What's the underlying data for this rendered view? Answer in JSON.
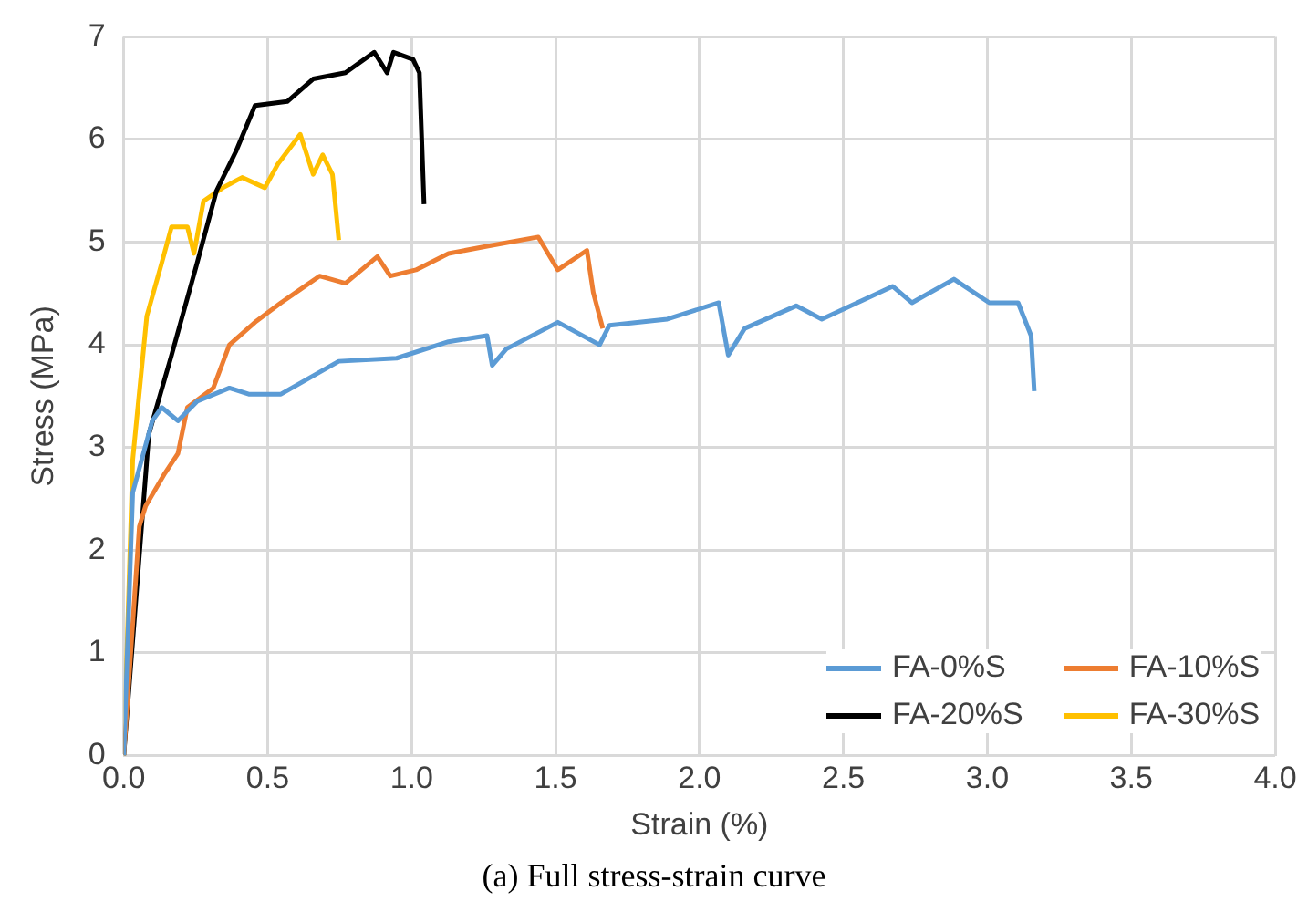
{
  "chart_data": {
    "type": "line",
    "xlabel": "Strain (%)",
    "ylabel": "Stress (MPa)",
    "annotations": [
      "(a) Full stress-strain curve"
    ],
    "xlim": [
      0,
      4
    ],
    "xticks": [
      {
        "value": 0,
        "label": "0.0"
      },
      {
        "value": 0.5,
        "label": "0.5"
      },
      {
        "value": 1,
        "label": "1.0"
      },
      {
        "value": 1.5,
        "label": "1.5"
      },
      {
        "value": 2,
        "label": "2.0"
      },
      {
        "value": 2.5,
        "label": "2.5"
      },
      {
        "value": 3,
        "label": "3.0"
      },
      {
        "value": 3.5,
        "label": "3.5"
      },
      {
        "value": 4,
        "label": "4.0"
      }
    ],
    "ylim": [
      0,
      7
    ],
    "yticks": [
      0,
      1,
      2,
      3,
      4,
      5,
      6,
      7
    ],
    "grid": true,
    "legend": "bottom right",
    "marker": "none",
    "line_style": "solid",
    "series": [
      {
        "name": "FA-0%S",
        "color": "#5b9bd5",
        "x": [
          0,
          0.031,
          0.099,
          0.132,
          0.188,
          0.255,
          0.367,
          0.434,
          0.546,
          0.747,
          0.948,
          1.128,
          1.262,
          1.28,
          1.329,
          1.508,
          1.653,
          1.687,
          1.888,
          2.067,
          2.1,
          2.157,
          2.336,
          2.425,
          2.671,
          2.738,
          2.884,
          3.007,
          3.107,
          3.152,
          3.163
        ],
        "values": [
          0,
          2.56,
          3.26,
          3.39,
          3.26,
          3.45,
          3.58,
          3.52,
          3.52,
          3.84,
          3.87,
          4.03,
          4.09,
          3.8,
          3.96,
          4.22,
          4.0,
          4.19,
          4.25,
          4.41,
          3.9,
          4.16,
          4.38,
          4.25,
          4.57,
          4.41,
          4.64,
          4.41,
          4.41,
          4.09,
          3.55
        ]
      },
      {
        "name": "FA-10%S",
        "color": "#ed7d31",
        "x": [
          0,
          0.054,
          0.076,
          0.143,
          0.188,
          0.221,
          0.311,
          0.367,
          0.456,
          0.546,
          0.613,
          0.68,
          0.77,
          0.881,
          0.926,
          1.015,
          1.128,
          1.262,
          1.44,
          1.508,
          1.609,
          1.631,
          1.664
        ],
        "values": [
          0,
          2.23,
          2.43,
          2.75,
          2.94,
          3.39,
          3.58,
          4.0,
          4.22,
          4.41,
          4.54,
          4.67,
          4.6,
          4.86,
          4.67,
          4.73,
          4.89,
          4.96,
          5.05,
          4.73,
          4.92,
          4.51,
          4.16
        ]
      },
      {
        "name": "FA-20%S",
        "color": "#000000",
        "x": [
          0,
          0.087,
          0.166,
          0.255,
          0.322,
          0.389,
          0.456,
          0.568,
          0.658,
          0.77,
          0.87,
          0.915,
          0.937,
          1.005,
          1.027,
          1.043
        ],
        "values": [
          0,
          3.13,
          3.9,
          4.8,
          5.5,
          5.88,
          6.33,
          6.37,
          6.59,
          6.65,
          6.85,
          6.65,
          6.85,
          6.78,
          6.65,
          5.37
        ]
      },
      {
        "name": "FA-30%S",
        "color": "#ffc000",
        "x": [
          0,
          0.031,
          0.08,
          0.132,
          0.166,
          0.221,
          0.244,
          0.277,
          0.344,
          0.411,
          0.49,
          0.535,
          0.613,
          0.658,
          0.691,
          0.725,
          0.747
        ],
        "values": [
          0,
          2.88,
          4.28,
          4.8,
          5.15,
          5.15,
          4.89,
          5.4,
          5.53,
          5.63,
          5.53,
          5.76,
          6.05,
          5.66,
          5.85,
          5.66,
          5.02
        ]
      }
    ]
  }
}
